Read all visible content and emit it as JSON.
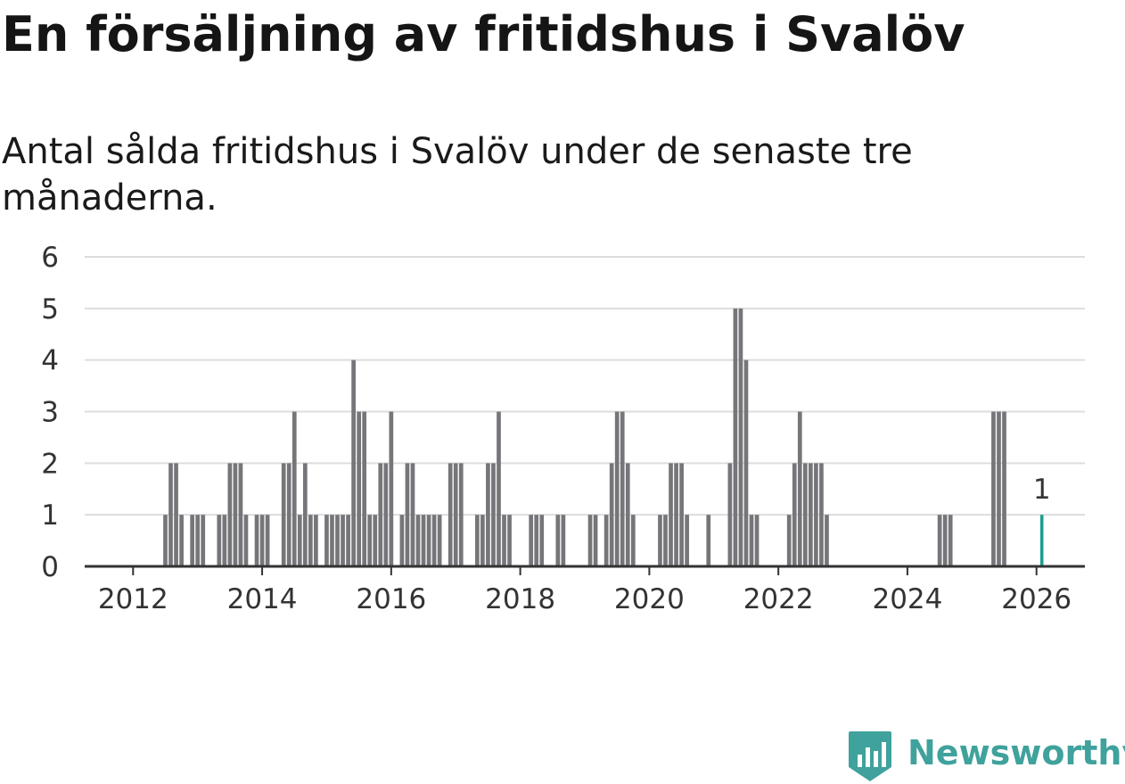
{
  "title": "En försäljning av fritidshus i Svalöv",
  "subtitle": "Antal sålda fritidshus i Svalöv under de senaste tre månaderna.",
  "brand": {
    "name": "Newsworthy",
    "color": "#3fa29c",
    "icon": "newsworthy-logo-icon"
  },
  "chart_data": {
    "type": "bar",
    "title": "En försäljning av fritidshus i Svalöv",
    "subtitle": "Antal sålda fritidshus i Svalöv under de senaste tre månaderna.",
    "xlabel": "",
    "ylabel": "",
    "ylim": [
      0,
      6
    ],
    "xlim": [
      2011.25,
      2026.75
    ],
    "grid": true,
    "legend": "none",
    "bar_color": "#76767a",
    "highlight_color": "#1a9e8f",
    "y_ticks": [
      "0",
      "1",
      "2",
      "3",
      "4",
      "5",
      "6"
    ],
    "x_ticks": [
      "2012",
      "2014",
      "2016",
      "2018",
      "2020",
      "2022",
      "2024",
      "2026"
    ],
    "annotation": {
      "label": "1",
      "target": "2026-02"
    },
    "series": [
      {
        "name": "Antal sålda fritidshus",
        "points": [
          [
            "2012-07",
            1
          ],
          [
            "2012-08",
            2
          ],
          [
            "2012-09",
            2
          ],
          [
            "2012-10",
            1
          ],
          [
            "2012-12",
            1
          ],
          [
            "2013-01",
            1
          ],
          [
            "2013-02",
            1
          ],
          [
            "2013-05",
            1
          ],
          [
            "2013-06",
            1
          ],
          [
            "2013-07",
            2
          ],
          [
            "2013-08",
            2
          ],
          [
            "2013-09",
            2
          ],
          [
            "2013-10",
            1
          ],
          [
            "2013-12",
            1
          ],
          [
            "2014-01",
            1
          ],
          [
            "2014-02",
            1
          ],
          [
            "2014-05",
            2
          ],
          [
            "2014-06",
            2
          ],
          [
            "2014-07",
            3
          ],
          [
            "2014-08",
            1
          ],
          [
            "2014-09",
            2
          ],
          [
            "2014-10",
            1
          ],
          [
            "2014-11",
            1
          ],
          [
            "2015-01",
            1
          ],
          [
            "2015-02",
            1
          ],
          [
            "2015-03",
            1
          ],
          [
            "2015-04",
            1
          ],
          [
            "2015-05",
            1
          ],
          [
            "2015-06",
            4
          ],
          [
            "2015-07",
            3
          ],
          [
            "2015-08",
            3
          ],
          [
            "2015-09",
            1
          ],
          [
            "2015-10",
            1
          ],
          [
            "2015-11",
            2
          ],
          [
            "2015-12",
            2
          ],
          [
            "2016-01",
            3
          ],
          [
            "2016-03",
            1
          ],
          [
            "2016-04",
            2
          ],
          [
            "2016-05",
            2
          ],
          [
            "2016-06",
            1
          ],
          [
            "2016-07",
            1
          ],
          [
            "2016-08",
            1
          ],
          [
            "2016-09",
            1
          ],
          [
            "2016-10",
            1
          ],
          [
            "2016-12",
            2
          ],
          [
            "2017-01",
            2
          ],
          [
            "2017-02",
            2
          ],
          [
            "2017-05",
            1
          ],
          [
            "2017-06",
            1
          ],
          [
            "2017-07",
            2
          ],
          [
            "2017-08",
            2
          ],
          [
            "2017-09",
            3
          ],
          [
            "2017-10",
            1
          ],
          [
            "2017-11",
            1
          ],
          [
            "2018-03",
            1
          ],
          [
            "2018-04",
            1
          ],
          [
            "2018-05",
            1
          ],
          [
            "2018-08",
            1
          ],
          [
            "2018-09",
            1
          ],
          [
            "2019-02",
            1
          ],
          [
            "2019-03",
            1
          ],
          [
            "2019-05",
            1
          ],
          [
            "2019-06",
            2
          ],
          [
            "2019-07",
            3
          ],
          [
            "2019-08",
            3
          ],
          [
            "2019-09",
            2
          ],
          [
            "2019-10",
            1
          ],
          [
            "2020-03",
            1
          ],
          [
            "2020-04",
            1
          ],
          [
            "2020-05",
            2
          ],
          [
            "2020-06",
            2
          ],
          [
            "2020-07",
            2
          ],
          [
            "2020-08",
            1
          ],
          [
            "2020-12",
            1
          ],
          [
            "2021-04",
            2
          ],
          [
            "2021-05",
            5
          ],
          [
            "2021-06",
            5
          ],
          [
            "2021-07",
            4
          ],
          [
            "2021-08",
            1
          ],
          [
            "2021-09",
            1
          ],
          [
            "2022-03",
            1
          ],
          [
            "2022-04",
            2
          ],
          [
            "2022-05",
            3
          ],
          [
            "2022-06",
            2
          ],
          [
            "2022-07",
            2
          ],
          [
            "2022-08",
            2
          ],
          [
            "2022-09",
            2
          ],
          [
            "2022-10",
            1
          ],
          [
            "2024-07",
            1
          ],
          [
            "2024-08",
            1
          ],
          [
            "2024-09",
            1
          ],
          [
            "2025-05",
            3
          ],
          [
            "2025-06",
            3
          ],
          [
            "2025-07",
            3
          ],
          [
            "2026-02",
            1
          ]
        ]
      }
    ]
  }
}
